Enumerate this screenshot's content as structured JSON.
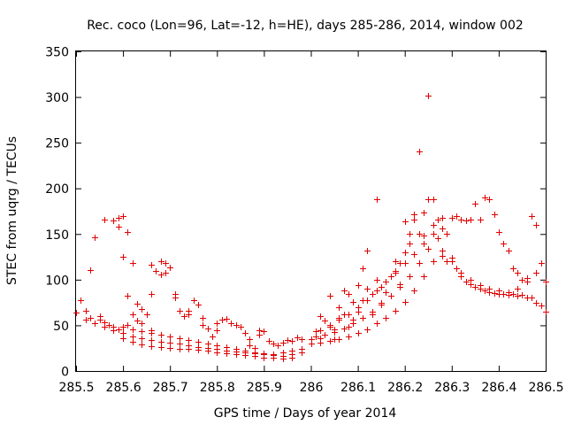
{
  "chart_data": {
    "type": "scatter",
    "title": "Rec. coco (Lon=96, Lat=-12, h=HE), days 285-286, 2014, window 002",
    "xlabel": "GPS time / Days of year 2014",
    "ylabel": "STEC from uqrg / TECUs",
    "xlim": [
      285.5,
      286.5
    ],
    "ylim": [
      0,
      350
    ],
    "xticks": [
      "285.5",
      "285.6",
      "285.7",
      "285.8",
      "285.9",
      "286",
      "286.1",
      "286.2",
      "286.3",
      "286.4",
      "286.5"
    ],
    "yticks": [
      "0",
      "50",
      "100",
      "150",
      "200",
      "250",
      "300",
      "350"
    ],
    "grid": false,
    "marker": "plus",
    "color": "#e00000",
    "series": [
      {
        "points": [
          [
            285.5,
            64
          ],
          [
            285.51,
            78
          ],
          [
            285.52,
            66
          ],
          [
            285.53,
            111
          ],
          [
            285.53,
            58
          ],
          [
            285.54,
            146
          ],
          [
            285.55,
            60
          ],
          [
            285.55,
            56
          ],
          [
            285.56,
            166
          ],
          [
            285.56,
            53
          ],
          [
            285.57,
            50
          ],
          [
            285.58,
            165
          ],
          [
            285.58,
            48
          ],
          [
            285.59,
            168
          ],
          [
            285.59,
            158
          ],
          [
            285.59,
            46
          ],
          [
            285.6,
            170
          ],
          [
            285.6,
            125
          ],
          [
            285.6,
            48
          ],
          [
            285.61,
            152
          ],
          [
            285.61,
            82
          ],
          [
            285.61,
            50
          ],
          [
            285.62,
            118
          ],
          [
            285.62,
            62
          ],
          [
            285.63,
            74
          ],
          [
            285.63,
            55
          ],
          [
            285.64,
            68
          ],
          [
            285.64,
            52
          ],
          [
            285.65,
            62
          ],
          [
            285.66,
            116
          ],
          [
            285.66,
            84
          ],
          [
            285.66,
            45
          ],
          [
            285.67,
            110
          ],
          [
            285.68,
            120
          ],
          [
            285.68,
            106
          ],
          [
            285.69,
            118
          ],
          [
            285.69,
            108
          ],
          [
            285.7,
            113
          ],
          [
            285.71,
            84
          ],
          [
            285.71,
            80
          ],
          [
            285.72,
            66
          ],
          [
            285.73,
            60
          ],
          [
            285.74,
            66
          ],
          [
            285.74,
            62
          ],
          [
            285.75,
            78
          ],
          [
            285.76,
            73
          ],
          [
            285.77,
            58
          ],
          [
            285.77,
            50
          ],
          [
            285.78,
            47
          ],
          [
            285.79,
            38
          ],
          [
            285.8,
            45
          ],
          [
            285.8,
            52
          ],
          [
            285.81,
            56
          ],
          [
            285.82,
            57
          ],
          [
            285.83,
            52
          ],
          [
            285.84,
            50
          ],
          [
            285.85,
            48
          ],
          [
            285.86,
            42
          ],
          [
            285.87,
            35
          ],
          [
            285.87,
            28
          ],
          [
            285.88,
            25
          ],
          [
            285.89,
            45
          ],
          [
            285.89,
            40
          ],
          [
            285.9,
            44
          ],
          [
            285.91,
            33
          ],
          [
            285.92,
            30
          ],
          [
            285.93,
            28
          ],
          [
            285.94,
            31
          ],
          [
            285.95,
            34
          ],
          [
            285.96,
            33
          ],
          [
            285.97,
            37
          ],
          [
            285.98,
            35
          ],
          [
            285.52,
            56
          ],
          [
            285.54,
            52
          ],
          [
            285.56,
            48
          ],
          [
            285.58,
            45
          ],
          [
            285.6,
            42
          ],
          [
            285.62,
            38
          ],
          [
            285.64,
            36
          ],
          [
            285.66,
            34
          ],
          [
            285.68,
            32
          ],
          [
            285.7,
            31
          ],
          [
            285.72,
            30
          ],
          [
            285.74,
            28
          ],
          [
            285.76,
            26
          ],
          [
            285.78,
            25
          ],
          [
            285.8,
            24
          ],
          [
            285.82,
            22
          ],
          [
            285.84,
            21
          ],
          [
            285.86,
            20
          ],
          [
            285.88,
            19
          ],
          [
            285.9,
            18
          ],
          [
            285.92,
            17
          ],
          [
            285.94,
            16
          ],
          [
            285.96,
            18
          ],
          [
            285.98,
            20
          ],
          [
            285.6,
            36
          ],
          [
            285.62,
            32
          ],
          [
            285.64,
            29
          ],
          [
            285.66,
            27
          ],
          [
            285.68,
            26
          ],
          [
            285.7,
            25
          ],
          [
            285.72,
            24
          ],
          [
            285.74,
            24
          ],
          [
            285.76,
            23
          ],
          [
            285.78,
            22
          ],
          [
            285.8,
            20
          ],
          [
            285.82,
            19
          ],
          [
            285.84,
            18
          ],
          [
            285.86,
            17
          ],
          [
            285.88,
            16
          ],
          [
            285.9,
            15
          ],
          [
            285.92,
            15
          ],
          [
            285.94,
            14
          ],
          [
            285.96,
            15
          ],
          [
            285.62,
            46
          ],
          [
            285.64,
            44
          ],
          [
            285.66,
            42
          ],
          [
            285.68,
            40
          ],
          [
            285.7,
            38
          ],
          [
            285.72,
            36
          ],
          [
            285.74,
            34
          ],
          [
            285.76,
            32
          ],
          [
            285.78,
            30
          ],
          [
            285.8,
            28
          ],
          [
            285.82,
            26
          ],
          [
            285.84,
            24
          ],
          [
            285.86,
            22
          ],
          [
            285.88,
            20
          ],
          [
            285.9,
            19
          ],
          [
            285.92,
            18
          ],
          [
            285.94,
            20
          ],
          [
            285.96,
            22
          ],
          [
            285.98,
            24
          ],
          [
            286.0,
            35
          ],
          [
            286.01,
            44
          ],
          [
            286.02,
            60
          ],
          [
            286.02,
            36
          ],
          [
            286.03,
            55
          ],
          [
            286.03,
            40
          ],
          [
            286.04,
            48
          ],
          [
            286.04,
            82
          ],
          [
            286.05,
            46
          ],
          [
            286.05,
            35
          ],
          [
            286.06,
            58
          ],
          [
            286.06,
            70
          ],
          [
            286.07,
            88
          ],
          [
            286.07,
            62
          ],
          [
            286.08,
            84
          ],
          [
            286.08,
            48
          ],
          [
            286.09,
            76
          ],
          [
            286.09,
            56
          ],
          [
            286.1,
            94
          ],
          [
            286.1,
            65
          ],
          [
            286.11,
            112
          ],
          [
            286.11,
            78
          ],
          [
            286.12,
            132
          ],
          [
            286.12,
            90
          ],
          [
            286.13,
            84
          ],
          [
            286.13,
            62
          ],
          [
            286.14,
            188
          ],
          [
            286.14,
            100
          ],
          [
            286.15,
            92
          ],
          [
            286.15,
            75
          ],
          [
            286.16,
            86
          ],
          [
            286.17,
            104
          ],
          [
            286.18,
            120
          ],
          [
            286.18,
            110
          ],
          [
            286.19,
            118
          ],
          [
            286.19,
            95
          ],
          [
            286.2,
            164
          ],
          [
            286.2,
            130
          ],
          [
            286.21,
            150
          ],
          [
            286.21,
            140
          ],
          [
            286.22,
            172
          ],
          [
            286.22,
            166
          ],
          [
            286.23,
            240
          ],
          [
            286.23,
            150
          ],
          [
            286.24,
            174
          ],
          [
            286.24,
            148
          ],
          [
            286.25,
            302
          ],
          [
            286.25,
            188
          ],
          [
            286.26,
            188
          ],
          [
            286.26,
            160
          ],
          [
            286.27,
            166
          ],
          [
            286.27,
            145
          ],
          [
            286.28,
            168
          ],
          [
            286.28,
            126
          ],
          [
            286.29,
            150
          ],
          [
            286.29,
            120
          ],
          [
            286.3,
            168
          ],
          [
            286.31,
            170
          ],
          [
            286.32,
            166
          ],
          [
            286.33,
            165
          ],
          [
            286.34,
            166
          ],
          [
            286.35,
            183
          ],
          [
            286.36,
            166
          ],
          [
            286.37,
            190
          ],
          [
            286.38,
            188
          ],
          [
            286.39,
            172
          ],
          [
            286.4,
            152
          ],
          [
            286.41,
            140
          ],
          [
            286.42,
            132
          ],
          [
            286.43,
            112
          ],
          [
            286.44,
            108
          ],
          [
            286.45,
            100
          ],
          [
            286.46,
            98
          ],
          [
            286.47,
            170
          ],
          [
            286.48,
            160
          ],
          [
            286.49,
            118
          ],
          [
            286.5,
            98
          ],
          [
            286.0,
            30
          ],
          [
            286.02,
            31
          ],
          [
            286.04,
            33
          ],
          [
            286.06,
            35
          ],
          [
            286.08,
            38
          ],
          [
            286.1,
            42
          ],
          [
            286.12,
            46
          ],
          [
            286.14,
            52
          ],
          [
            286.16,
            58
          ],
          [
            286.18,
            66
          ],
          [
            286.2,
            76
          ],
          [
            286.22,
            88
          ],
          [
            286.24,
            104
          ],
          [
            286.26,
            120
          ],
          [
            286.28,
            132
          ],
          [
            286.3,
            120
          ],
          [
            286.32,
            104
          ],
          [
            286.34,
            95
          ],
          [
            286.36,
            90
          ],
          [
            286.38,
            86
          ],
          [
            286.4,
            84
          ],
          [
            286.42,
            83
          ],
          [
            286.44,
            82
          ],
          [
            286.46,
            80
          ],
          [
            286.48,
            75
          ],
          [
            286.5,
            65
          ],
          [
            286.01,
            38
          ],
          [
            286.03,
            40
          ],
          [
            286.05,
            43
          ],
          [
            286.07,
            47
          ],
          [
            286.09,
            52
          ],
          [
            286.11,
            58
          ],
          [
            286.13,
            65
          ],
          [
            286.15,
            73
          ],
          [
            286.17,
            82
          ],
          [
            286.19,
            92
          ],
          [
            286.21,
            104
          ],
          [
            286.23,
            118
          ],
          [
            286.25,
            134
          ],
          [
            286.27,
            145
          ],
          [
            286.29,
            150
          ],
          [
            286.31,
            112
          ],
          [
            286.33,
            98
          ],
          [
            286.35,
            92
          ],
          [
            286.37,
            88
          ],
          [
            286.39,
            85
          ],
          [
            286.41,
            84
          ],
          [
            286.43,
            84
          ],
          [
            286.45,
            83
          ],
          [
            286.47,
            80
          ],
          [
            286.49,
            72
          ],
          [
            286.02,
            45
          ],
          [
            286.04,
            50
          ],
          [
            286.06,
            56
          ],
          [
            286.08,
            62
          ],
          [
            286.1,
            70
          ],
          [
            286.12,
            78
          ],
          [
            286.14,
            88
          ],
          [
            286.16,
            98
          ],
          [
            286.18,
            108
          ],
          [
            286.2,
            118
          ],
          [
            286.22,
            128
          ],
          [
            286.24,
            140
          ],
          [
            286.26,
            150
          ],
          [
            286.28,
            156
          ],
          [
            286.3,
            124
          ],
          [
            286.32,
            108
          ],
          [
            286.34,
            100
          ],
          [
            286.36,
            94
          ],
          [
            286.38,
            90
          ],
          [
            286.4,
            88
          ],
          [
            286.42,
            86
          ],
          [
            286.44,
            90
          ],
          [
            286.46,
            102
          ],
          [
            286.48,
            108
          ]
        ]
      }
    ]
  }
}
